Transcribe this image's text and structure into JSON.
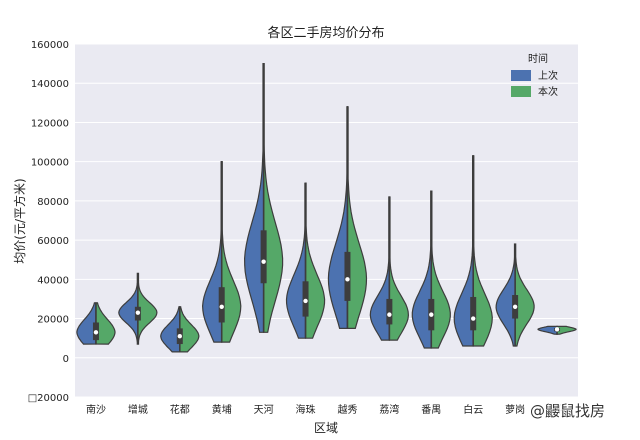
{
  "chart_data": {
    "type": "violin",
    "title": "各区二手房均价分布",
    "xlabel": "区域",
    "ylabel": "均价(元/平方米)",
    "ylim": [
      -20000,
      160000
    ],
    "yticks": [
      -20000,
      0,
      20000,
      40000,
      60000,
      80000,
      100000,
      120000,
      140000,
      160000
    ],
    "ytick_labels": [
      "□20000",
      "0",
      "20000",
      "40000",
      "60000",
      "80000",
      "100000",
      "120000",
      "140000",
      "160000"
    ],
    "grid": true,
    "legend": {
      "title": "时间",
      "position": "top-right"
    },
    "series": [
      {
        "name": "上次",
        "color": "#4c72b0"
      },
      {
        "name": "本次",
        "color": "#55a868"
      }
    ],
    "categories": [
      "南沙",
      "增城",
      "花都",
      "黄埔",
      "天河",
      "海珠",
      "越秀",
      "荔湾",
      "番禺",
      "白云",
      "萝岗",
      "从化"
    ],
    "distributions": [
      {
        "min": 7000,
        "max": 28000,
        "q1": 9000,
        "median": 13000,
        "q3": 18000
      },
      {
        "min": 7000,
        "max": 43000,
        "q1": 19000,
        "median": 23000,
        "q3": 26000
      },
      {
        "min": 3000,
        "max": 26000,
        "q1": 7000,
        "median": 11000,
        "q3": 15000
      },
      {
        "min": 8000,
        "max": 100000,
        "q1": 18000,
        "median": 26000,
        "q3": 36000
      },
      {
        "min": 13000,
        "max": 150000,
        "q1": 38000,
        "median": 49000,
        "q3": 65000
      },
      {
        "min": 10000,
        "max": 89000,
        "q1": 21000,
        "median": 29000,
        "q3": 39000
      },
      {
        "min": 15000,
        "max": 128000,
        "q1": 29000,
        "median": 40000,
        "q3": 54000
      },
      {
        "min": 9000,
        "max": 82000,
        "q1": 17000,
        "median": 22000,
        "q3": 30000
      },
      {
        "min": 5000,
        "max": 85000,
        "q1": 14000,
        "median": 22000,
        "q3": 30000
      },
      {
        "min": 6000,
        "max": 103000,
        "q1": 14000,
        "median": 20000,
        "q3": 31000
      },
      {
        "min": 6000,
        "max": 58000,
        "q1": 20000,
        "median": 26000,
        "q3": 32000
      },
      {
        "min": 12000,
        "max": 16000,
        "q1": 13500,
        "median": 14500,
        "q3": 15200
      }
    ]
  },
  "watermark": "鼹鼠找房"
}
